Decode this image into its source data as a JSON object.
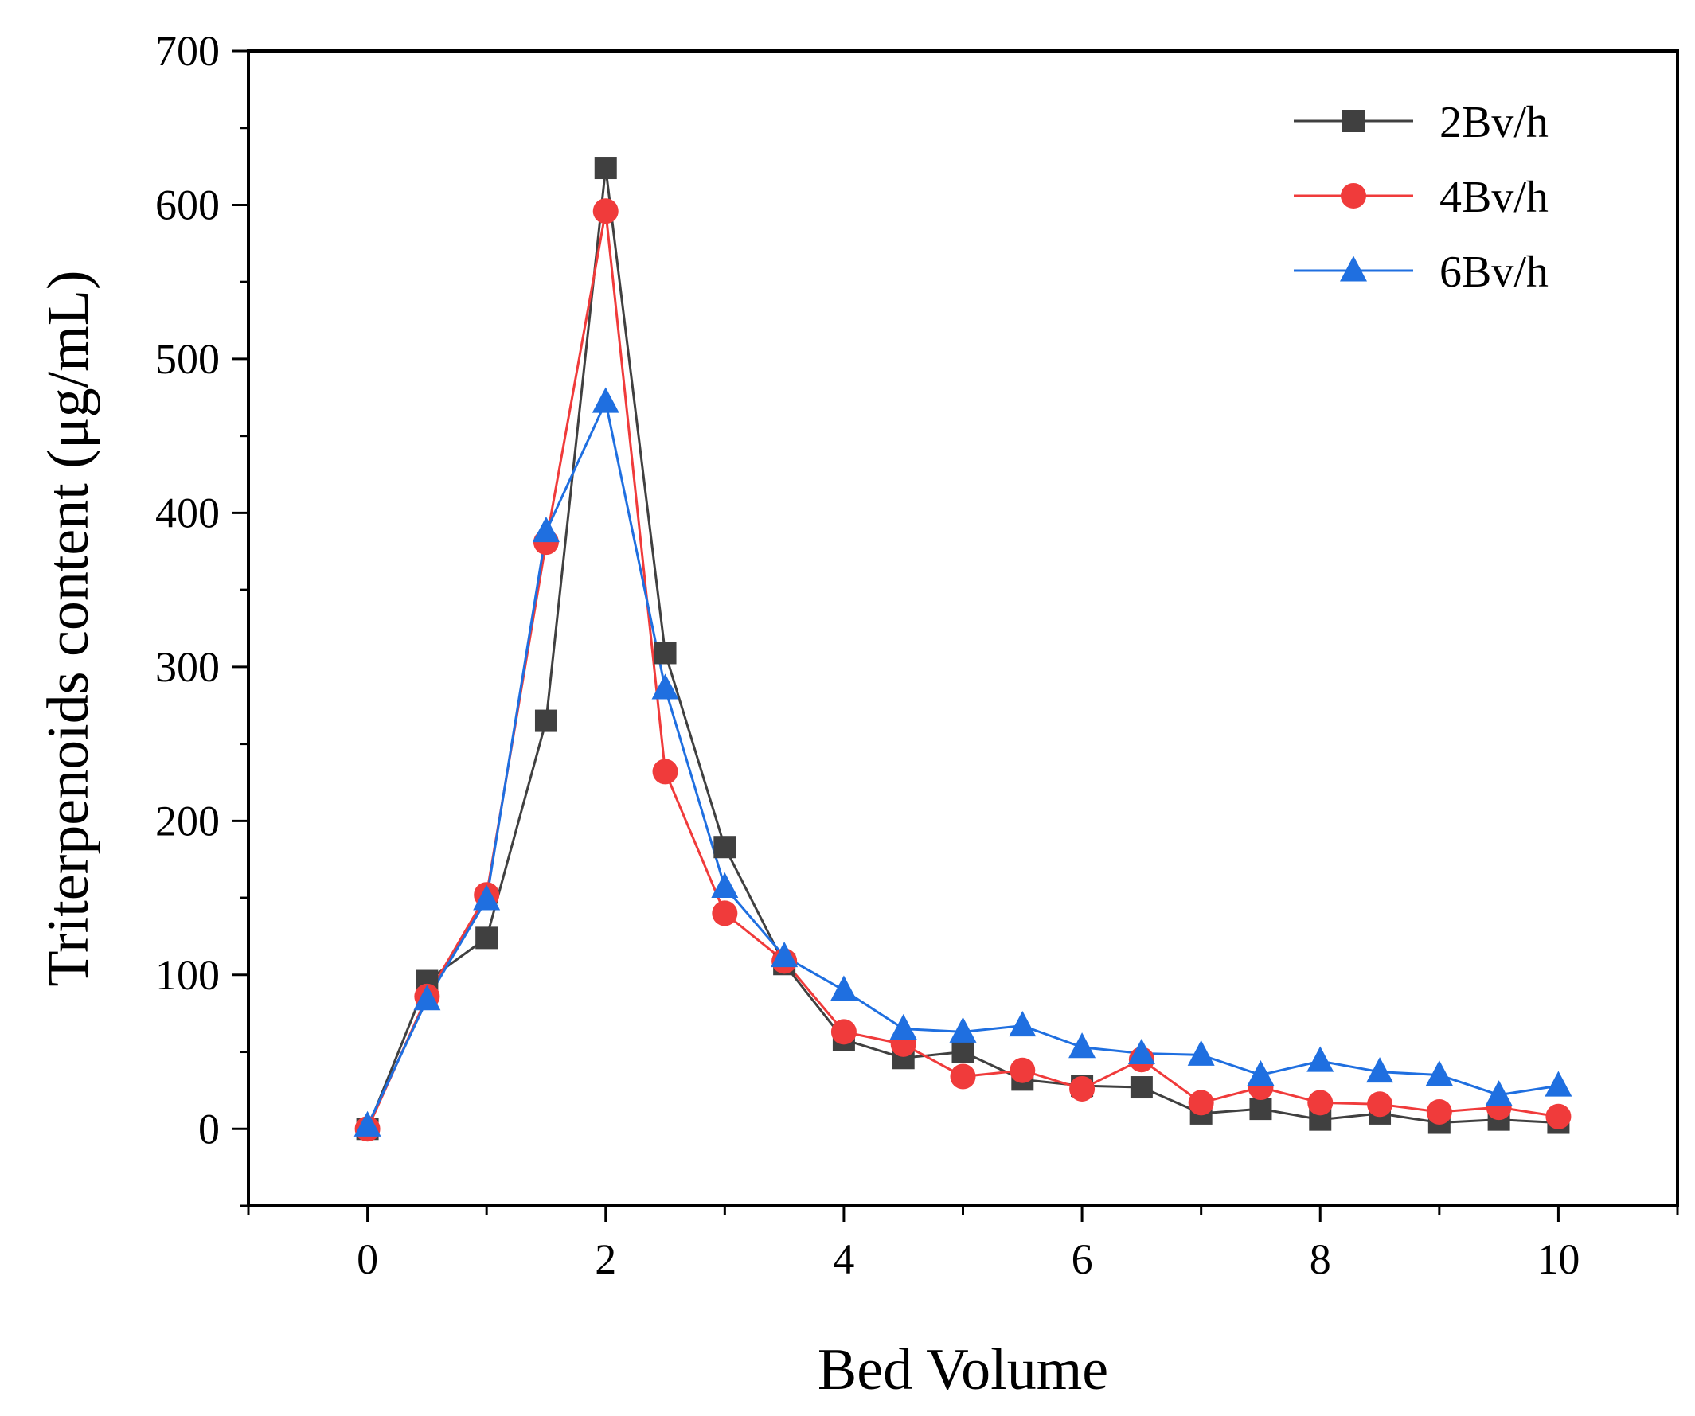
{
  "chart_data": {
    "type": "line",
    "title": "",
    "xlabel": "Bed Volume",
    "ylabel": "Triterpenoids content (μg/mL)",
    "xlim": [
      -1,
      11
    ],
    "ylim": [
      -50,
      700
    ],
    "x_ticks": [
      0,
      2,
      4,
      6,
      8,
      10
    ],
    "x_minor_step": 1,
    "y_ticks": [
      0,
      100,
      200,
      300,
      400,
      500,
      600,
      700
    ],
    "y_minor_step": 50,
    "grid": false,
    "legend_position": "top-right",
    "x": [
      0,
      0.5,
      1,
      1.5,
      2,
      2.5,
      3,
      3.5,
      4,
      4.5,
      5,
      5.5,
      6,
      6.5,
      7,
      7.5,
      8,
      8.5,
      9,
      9.5,
      10
    ],
    "series": [
      {
        "name": "2Bv/h",
        "color": "#404040",
        "marker": "square",
        "values": [
          0,
          96,
          124,
          265,
          624,
          309,
          183,
          107,
          58,
          46,
          50,
          32,
          28,
          27,
          10,
          13,
          6,
          10,
          4,
          6,
          4
        ]
      },
      {
        "name": "4Bv/h",
        "color": "#f03b3b",
        "marker": "circle",
        "values": [
          0,
          86,
          152,
          381,
          596,
          232,
          140,
          109,
          63,
          55,
          34,
          38,
          26,
          45,
          17,
          27,
          17,
          16,
          11,
          14,
          8
        ]
      },
      {
        "name": "6Bv/h",
        "color": "#1f6fe0",
        "marker": "triangle",
        "values": [
          2,
          84,
          149,
          388,
          472,
          286,
          157,
          112,
          90,
          65,
          63,
          67,
          53,
          49,
          48,
          35,
          44,
          37,
          35,
          22,
          28
        ]
      }
    ]
  }
}
